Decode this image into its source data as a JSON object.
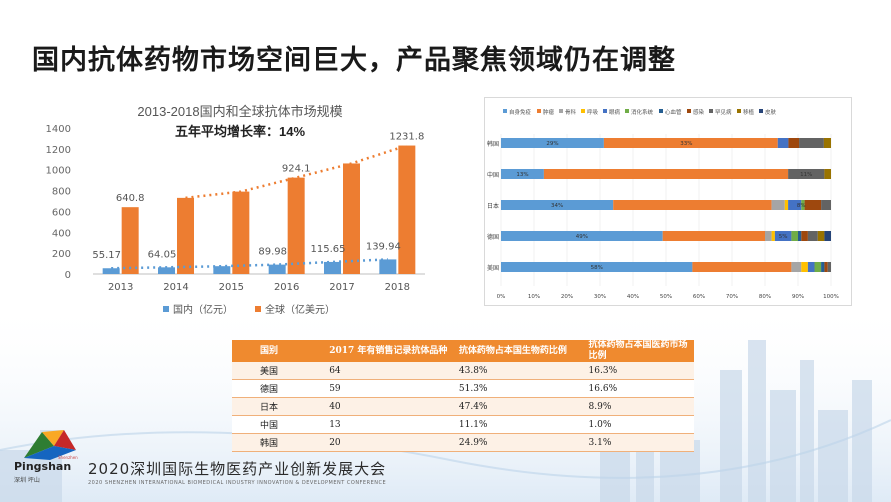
{
  "slide_title": "国内抗体药物市场空间巨大，产品聚焦领域仍在调整",
  "chart_data": [
    {
      "type": "bar",
      "title": "2013-2018国内和全球抗体市场规模",
      "subtitle": "五年平均增长率：14%",
      "categories": [
        "2013",
        "2014",
        "2015",
        "2016",
        "2017",
        "2018"
      ],
      "series": [
        {
          "name": "国内（亿元）",
          "color": "#5b9bd5",
          "values": [
            55.17,
            64.05,
            75,
            89.98,
            115.65,
            139.94
          ],
          "labels": [
            "55.17",
            "64.05",
            "",
            "89.98",
            "115.65",
            "139.94"
          ]
        },
        {
          "name": "全球（亿美元）",
          "color": "#ed7d31",
          "values": [
            640.8,
            730,
            790,
            924.1,
            1060,
            1231.8
          ],
          "labels": [
            "640.8",
            "",
            "",
            "924.1",
            "",
            "1231.8"
          ]
        }
      ],
      "yticks": [
        "0",
        "200",
        "400",
        "600",
        "800",
        "1000",
        "1200",
        "1400"
      ],
      "ylim": [
        0,
        1400
      ],
      "trendlines": true
    },
    {
      "type": "bar",
      "orientation": "horizontal-stacked-100",
      "legend": [
        {
          "name": "自身免疫",
          "color": "#5b9bd5"
        },
        {
          "name": "肿瘤",
          "color": "#ed7d31"
        },
        {
          "name": "骨科",
          "color": "#a5a5a5"
        },
        {
          "name": "呼吸",
          "color": "#ffc000"
        },
        {
          "name": "眼病",
          "color": "#4472c4"
        },
        {
          "name": "消化系统",
          "color": "#70ad47"
        },
        {
          "name": "心血管",
          "color": "#255e91"
        },
        {
          "name": "感染",
          "color": "#9e480e"
        },
        {
          "name": "罕见病",
          "color": "#636363"
        },
        {
          "name": "移植",
          "color": "#997300"
        },
        {
          "name": "皮肤",
          "color": "#264478"
        }
      ],
      "categories": [
        "韩国",
        "中国",
        "日本",
        "德国",
        "美国"
      ],
      "rows": [
        {
          "name": "韩国",
          "values": [
            29,
            49,
            0,
            0,
            3,
            0,
            0,
            3,
            7,
            2,
            0
          ],
          "labels": [
            "29%",
            "",
            "",
            "",
            "",
            "",
            "",
            "",
            "",
            "",
            ""
          ],
          "mid_label": "33%"
        },
        {
          "name": "中国",
          "values": [
            13,
            74,
            0,
            0,
            0,
            0,
            0,
            0,
            11,
            2,
            0
          ],
          "labels": [
            "13%",
            "",
            "",
            "",
            "",
            "",
            "",
            "",
            "11%",
            "",
            ""
          ]
        },
        {
          "name": "日本",
          "values": [
            34,
            48,
            4,
            1,
            4,
            1,
            0,
            5,
            3,
            0,
            0
          ],
          "labels": [
            "34%",
            "",
            "",
            "",
            "",
            "",
            "",
            "",
            "",
            "",
            ""
          ],
          "tail_label": "8%"
        },
        {
          "name": "德国",
          "values": [
            49,
            31,
            2,
            1,
            5,
            2,
            1,
            2,
            3,
            2,
            2
          ],
          "labels": [
            "49%",
            "",
            "",
            "",
            "5%",
            "",
            "",
            "",
            "",
            "",
            ""
          ]
        },
        {
          "name": "美国",
          "values": [
            58,
            30,
            3,
            2,
            2,
            2,
            1,
            1,
            1,
            0,
            0
          ],
          "labels": [
            "58%",
            "",
            "",
            "",
            "",
            "",
            "",
            "",
            "",
            "",
            ""
          ]
        }
      ],
      "xticks": [
        "0%",
        "10%",
        "20%",
        "30%",
        "40%",
        "50%",
        "60%",
        "70%",
        "80%",
        "90%",
        "100%"
      ]
    }
  ],
  "table": {
    "headers": [
      "国别",
      "2017 年有销售记录抗体品种",
      "抗体药物占本国生物药比例",
      "抗体药物占本国医药市场比例"
    ],
    "rows": [
      [
        "美国",
        "64",
        "43.8%",
        "16.3%"
      ],
      [
        "德国",
        "59",
        "51.3%",
        "16.6%"
      ],
      [
        "日本",
        "40",
        "47.4%",
        "8.9%"
      ],
      [
        "中国",
        "13",
        "11.1%",
        "1.0%"
      ],
      [
        "韩国",
        "20",
        "24.9%",
        "3.1%"
      ]
    ]
  },
  "footer": {
    "brand": "Pingshan",
    "brand_sub": "深圳 坪山",
    "brand_tag": "Shenzhen",
    "event": "2020深圳国际生物医药产业创新发展大会",
    "event_en": "2020 SHENZHEN INTERNATIONAL BIOMEDICAL INDUSTRY INNOVATION & DEVELOPMENT CONFERENCE"
  }
}
